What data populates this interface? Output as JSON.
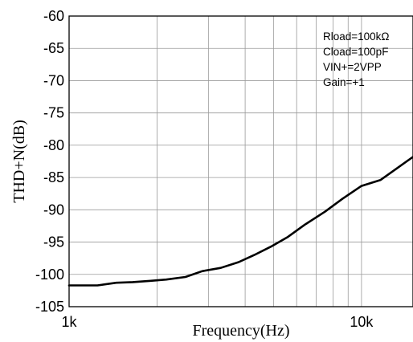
{
  "chart_data": {
    "type": "line",
    "xlabel": "Frequency(Hz)",
    "ylabel": "THD+N(dB)",
    "x_scale": "log",
    "xlim": [
      1000,
      15000
    ],
    "ylim": [
      -105,
      -60
    ],
    "grid": true,
    "x_tick_labels": [
      {
        "value": 1000,
        "label": "1k"
      },
      {
        "value": 10000,
        "label": "10k"
      }
    ],
    "y_ticks": [
      -60,
      -65,
      -70,
      -75,
      -80,
      -85,
      -90,
      -95,
      -100,
      -105
    ],
    "annotations": [
      "Rload=100kΩ",
      "Cload=100pF",
      "VIN+=2VPP",
      "Gain=+1"
    ],
    "series": [
      {
        "x": [
          1000,
          1250,
          1450,
          1650,
          1900,
          2150,
          2500,
          2850,
          3300,
          3800,
          4300,
          4900,
          5600,
          6400,
          7500,
          8600,
          10000,
          11600,
          13200,
          15000
        ],
        "y": [
          -101.7,
          -101.7,
          -101.3,
          -101.2,
          -101.0,
          -100.8,
          -100.4,
          -99.5,
          -99.0,
          -98.1,
          -97.0,
          -95.7,
          -94.2,
          -92.3,
          -90.3,
          -88.3,
          -86.3,
          -85.4,
          -83.6,
          -81.8
        ]
      }
    ]
  }
}
